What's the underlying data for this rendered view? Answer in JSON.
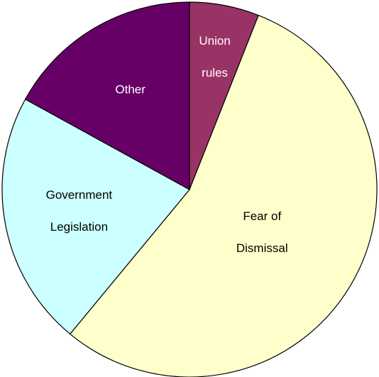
{
  "chart_data": {
    "type": "pie",
    "categories": [
      "Union rules",
      "Fear of Dismissal",
      "Government Legislation",
      "Other"
    ],
    "values": [
      6,
      55,
      22,
      17
    ],
    "colors": [
      "#993366",
      "#ffffcc",
      "#ccffff",
      "#660066"
    ]
  }
}
